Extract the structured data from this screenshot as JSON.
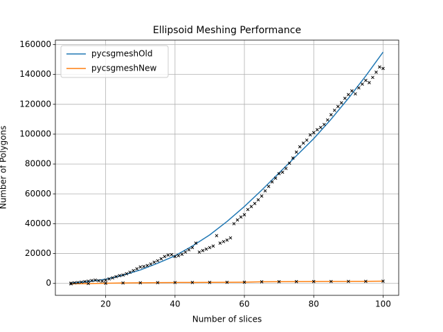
{
  "chart_data": {
    "type": "line",
    "title": "Ellipsoid Meshing Performance",
    "x_label": "Number of slices",
    "y_label": "Number of Polygons",
    "xlim": [
      5.5,
      104.5
    ],
    "xticks": [
      20,
      40,
      60,
      80,
      100
    ],
    "ylim": [
      -8000,
      163000
    ],
    "yticks": [
      0,
      20000,
      40000,
      60000,
      80000,
      100000,
      120000,
      140000,
      160000
    ],
    "grid": true,
    "legend": "upper left",
    "series": [
      {
        "name": "pycsgmeshOld",
        "color": "#1f77b4",
        "x": [
          10,
          15,
          20,
          25,
          30,
          35,
          40,
          45,
          50,
          55,
          60,
          65,
          70,
          75,
          80,
          85,
          90,
          95,
          100
        ],
        "values": [
          200,
          1200,
          2800,
          5500,
          9000,
          13500,
          18500,
          25000,
          32500,
          41500,
          51500,
          62500,
          74000,
          85500,
          97000,
          110000,
          124000,
          139000,
          155000
        ]
      },
      {
        "name": "pycsgmeshNew",
        "color": "#ff7f0e",
        "x": [
          10,
          15,
          20,
          25,
          30,
          35,
          40,
          45,
          50,
          55,
          60,
          65,
          70,
          75,
          80,
          85,
          90,
          95,
          100
        ],
        "values": [
          -300,
          -100,
          100,
          300,
          400,
          500,
          600,
          650,
          700,
          750,
          800,
          1100,
          1150,
          1200,
          1250,
          1300,
          1350,
          1400,
          1500
        ]
      }
    ],
    "scatter": [
      {
        "color": "#000000",
        "x": [
          10,
          11,
          12,
          13,
          14,
          15,
          16,
          17,
          18,
          19,
          20,
          21,
          22,
          23,
          24,
          25,
          26,
          27,
          28,
          29,
          30,
          31,
          32,
          33,
          34,
          35,
          36,
          37,
          38,
          39,
          40,
          41,
          42,
          43,
          44,
          45,
          46,
          47,
          48,
          49,
          50,
          51,
          52,
          53,
          54,
          55,
          56,
          57,
          58,
          59,
          60,
          61,
          62,
          63,
          64,
          65,
          66,
          67,
          68,
          69,
          70,
          71,
          72,
          73,
          74,
          75,
          76,
          77,
          78,
          79,
          80,
          81,
          82,
          83,
          84,
          85,
          86,
          87,
          88,
          89,
          90,
          91,
          92,
          93,
          94,
          95,
          96,
          97,
          98,
          99,
          100
        ],
        "values": [
          200,
          400,
          600,
          900,
          1200,
          1500,
          1900,
          2200,
          1800,
          1500,
          2200,
          3000,
          3700,
          4500,
          5200,
          5600,
          6500,
          7500,
          8600,
          9800,
          11000,
          11300,
          12000,
          13000,
          14200,
          15200,
          16500,
          18000,
          19000,
          19300,
          18000,
          18600,
          19500,
          21000,
          22500,
          24000,
          27000,
          21000,
          22000,
          23000,
          24000,
          25000,
          32000,
          27000,
          28000,
          29000,
          30500,
          40000,
          42500,
          44500,
          46000,
          49500,
          51500,
          53500,
          56000,
          58500,
          62000,
          65000,
          68000,
          70500,
          73500,
          74500,
          77000,
          80500,
          84000,
          88000,
          91500,
          94000,
          96000,
          99500,
          101000,
          103000,
          104500,
          106500,
          109500,
          113000,
          116000,
          118500,
          121000,
          124000,
          126500,
          129000,
          127000,
          131000,
          133500,
          136000,
          134500,
          138000,
          141500,
          145000,
          144000
        ]
      },
      {
        "color": "#000000",
        "x": [
          10,
          15,
          20,
          25,
          30,
          35,
          40,
          45,
          50,
          55,
          60,
          65,
          70,
          75,
          80,
          85,
          90,
          95,
          100
        ],
        "values": [
          -300,
          -100,
          100,
          300,
          400,
          500,
          600,
          650,
          700,
          750,
          800,
          1100,
          1150,
          1200,
          1250,
          1300,
          1350,
          1400,
          1500
        ]
      }
    ]
  }
}
